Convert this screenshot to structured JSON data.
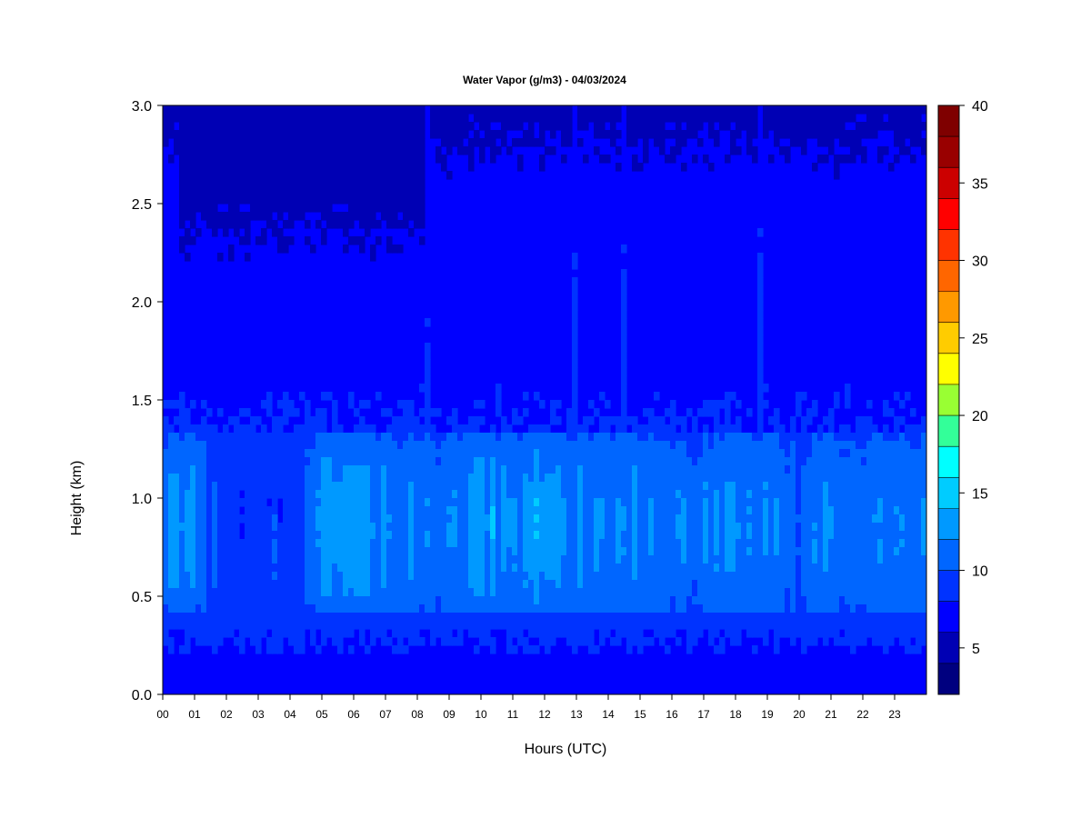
{
  "chart_data": {
    "type": "heatmap",
    "title": "Water Vapor (g/m3) - 04/03/2024",
    "xlabel": "Hours (UTC)",
    "ylabel": "Height (km)",
    "x_ticks": [
      "00",
      "01",
      "02",
      "03",
      "04",
      "05",
      "06",
      "07",
      "08",
      "09",
      "10",
      "11",
      "12",
      "13",
      "14",
      "15",
      "16",
      "17",
      "18",
      "19",
      "20",
      "21",
      "22",
      "23"
    ],
    "x_range": [
      0,
      24
    ],
    "y_ticks": [
      "0.0",
      "0.5",
      "1.0",
      "1.5",
      "2.0",
      "2.5",
      "3.0"
    ],
    "y_range": [
      0,
      3.0
    ],
    "colorbar": {
      "range": [
        2,
        40
      ],
      "ticks": [
        "5",
        "10",
        "15",
        "20",
        "25",
        "30",
        "35",
        "40"
      ],
      "levels": [
        2.5,
        5,
        7.5,
        10,
        12.5,
        15,
        17.5,
        20,
        22.5,
        25,
        27.5,
        30,
        32.5,
        35,
        37.5,
        40
      ],
      "colors": [
        "#00007f",
        "#0000b4",
        "#0000ff",
        "#0033ff",
        "#0066ff",
        "#0099ff",
        "#00ccff",
        "#00ffff",
        "#33ff99",
        "#99ff33",
        "#ffff00",
        "#ffcc00",
        "#ff9900",
        "#ff6600",
        "#ff3300",
        "#ff0000",
        "#cc0000",
        "#990000",
        "#7f0000"
      ]
    },
    "hourly_peak_g_m3": [
      13,
      13,
      8,
      9,
      9,
      13,
      14,
      13,
      13,
      12,
      14,
      13,
      14,
      13,
      12,
      13,
      12,
      12,
      13,
      12,
      11,
      12,
      12,
      12
    ],
    "moist_layer_height_km": [
      0.4,
      1.35
    ],
    "peak_height_km": 0.85,
    "grid": false
  }
}
